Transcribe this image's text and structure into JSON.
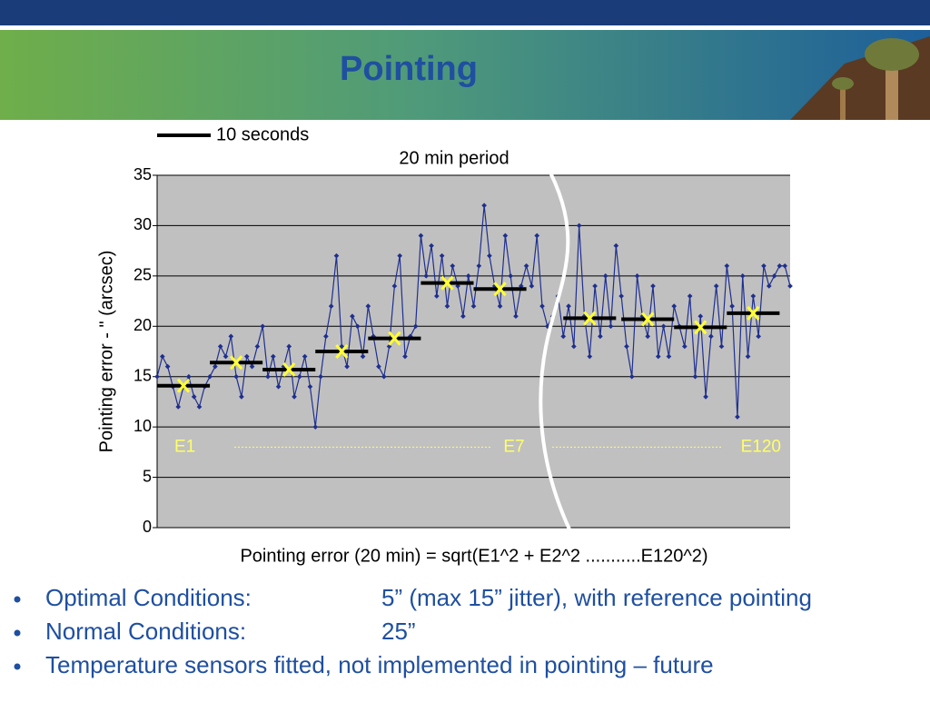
{
  "title": "Pointing",
  "chart_data": {
    "type": "line",
    "subtitle": "20 min period",
    "ylabel": "Pointing error - \" (arcsec)",
    "xlabel": "Pointing error (20 min) = sqrt(E1^2 + E2^2 ...........E120^2)",
    "ylim": [
      0,
      35
    ],
    "yticks": [
      0,
      5,
      10,
      15,
      20,
      25,
      30,
      35
    ],
    "xlim": [
      0,
      120
    ],
    "grid": true,
    "series": [
      {
        "color": "#1f2f8f",
        "values": [
          15,
          17,
          16,
          14,
          12,
          14,
          15,
          13,
          12,
          14,
          15,
          16,
          18,
          17,
          19,
          15,
          13,
          17,
          16,
          18,
          20,
          15,
          17,
          14,
          16,
          18,
          13,
          15,
          17,
          14,
          10,
          15,
          19,
          22,
          27,
          18,
          16,
          21,
          20,
          17,
          22,
          19,
          16,
          15,
          18,
          24,
          27,
          17,
          19,
          20,
          29,
          25,
          28,
          23,
          27,
          22,
          26,
          24,
          21,
          25,
          22,
          26,
          32,
          27,
          24,
          22,
          29,
          25,
          21,
          24,
          26,
          24,
          29,
          22,
          20,
          21,
          23,
          19,
          22,
          18,
          30,
          21,
          17,
          24,
          19,
          25,
          20,
          28,
          23,
          18,
          15,
          25,
          21,
          19,
          24,
          17,
          20,
          17,
          22,
          20,
          18,
          23,
          15,
          21,
          13,
          19,
          24,
          18,
          26,
          22,
          11,
          25,
          17,
          23,
          19,
          26,
          24,
          25,
          26,
          26,
          24
        ]
      }
    ],
    "segments": {
      "name": "10 seconds",
      "color": "#000000",
      "marker_color": "#ffff33",
      "items": [
        {
          "start": 0,
          "end": 10,
          "value": 14.1
        },
        {
          "start": 10,
          "end": 20,
          "value": 16.4
        },
        {
          "start": 20,
          "end": 30,
          "value": 15.7
        },
        {
          "start": 30,
          "end": 40,
          "value": 17.5
        },
        {
          "start": 40,
          "end": 50,
          "value": 18.8
        },
        {
          "start": 50,
          "end": 60,
          "value": 24.3
        },
        {
          "start": 60,
          "end": 70,
          "value": 23.7
        },
        {
          "start": 77,
          "end": 87,
          "value": 20.8
        },
        {
          "start": 88,
          "end": 98,
          "value": 20.7
        },
        {
          "start": 98,
          "end": 108,
          "value": 19.9
        },
        {
          "start": 108,
          "end": 118,
          "value": 21.3
        }
      ]
    },
    "annotations": [
      "E1",
      "E7",
      "E120"
    ],
    "annotation_y": 8
  },
  "bullets": [
    {
      "label": "Optimal Conditions:",
      "value": "5” (max 15” jitter), with reference pointing"
    },
    {
      "label": "Normal Conditions:",
      "value": "25”"
    },
    {
      "label": "Temperature sensors fitted, not implemented in pointing – future"
    }
  ]
}
